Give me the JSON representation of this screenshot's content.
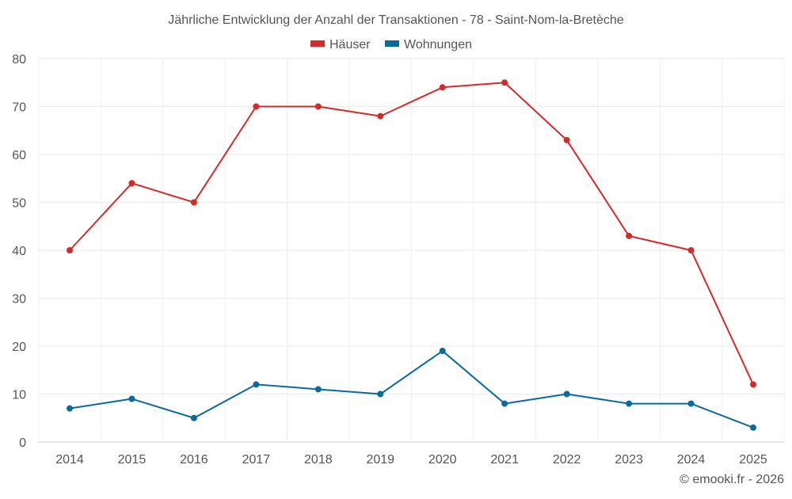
{
  "chart_data": {
    "type": "line",
    "title": "Jährliche Entwicklung der Anzahl der Transaktionen - 78 - Saint-Nom-la-Bretèche",
    "xlabel": "",
    "ylabel": "",
    "categories": [
      "2014",
      "2015",
      "2016",
      "2017",
      "2018",
      "2019",
      "2020",
      "2021",
      "2022",
      "2023",
      "2024",
      "2025"
    ],
    "series": [
      {
        "name": "Häuser",
        "color": "#d42a2a",
        "values": [
          40,
          54,
          50,
          70,
          70,
          68,
          74,
          75,
          63,
          43,
          40,
          12
        ]
      },
      {
        "name": "Wohnungen",
        "color": "#0a6a9e",
        "values": [
          7,
          9,
          5,
          12,
          11,
          10,
          19,
          8,
          10,
          8,
          8,
          3
        ]
      }
    ],
    "ylim": [
      0,
      80
    ],
    "yticks": [
      0,
      10,
      20,
      30,
      40,
      50,
      60,
      70,
      80
    ],
    "grid": true,
    "legend_position": "top-center"
  },
  "credit": "© emooki.fr - 2026",
  "colors": {
    "text": "#555555",
    "grid": "#e9e9e9",
    "axis": "#cccccc"
  }
}
